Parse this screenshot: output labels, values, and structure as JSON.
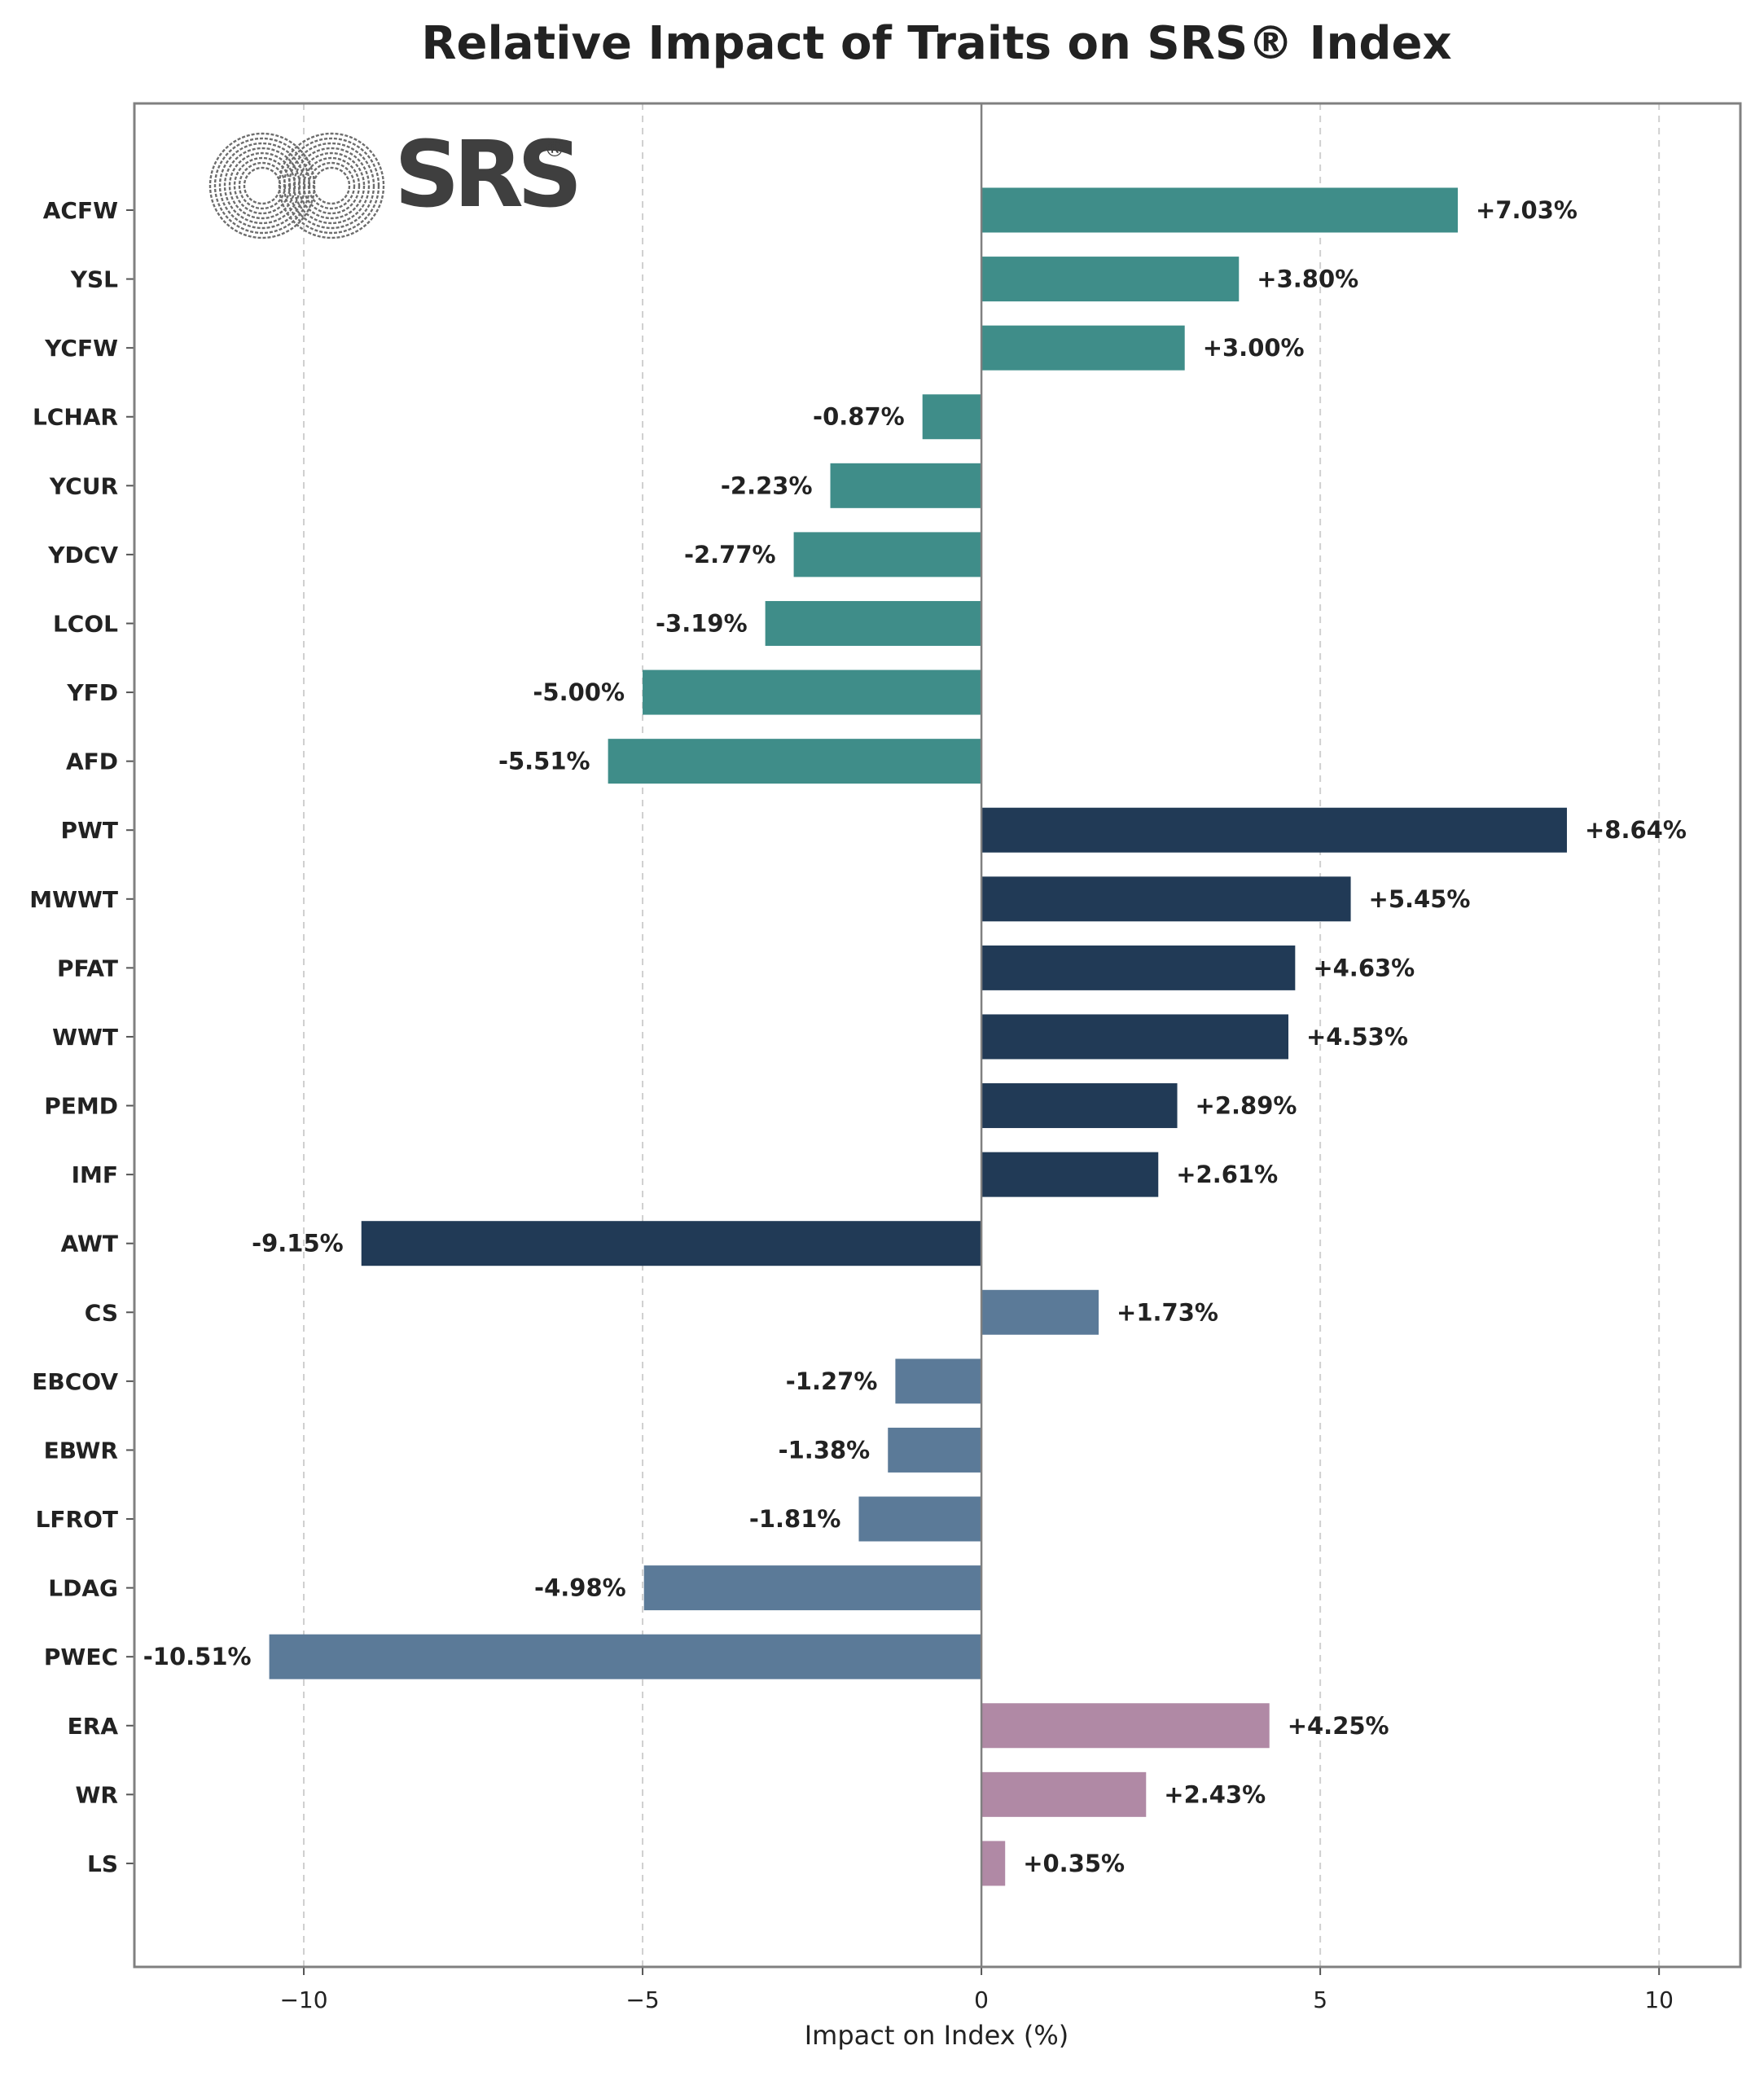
{
  "chart_data": {
    "type": "bar",
    "orientation": "horizontal",
    "title": "Relative Impact of Traits on SRS® Index",
    "xlabel": "Impact on Index (%)",
    "ylabel": "",
    "xlim": [
      -12.5,
      11.2
    ],
    "xticks": [
      -10,
      -5,
      0,
      5,
      10
    ],
    "xtick_labels": [
      "−10",
      "−5",
      "0",
      "5",
      "10"
    ],
    "grid": "x, dashed",
    "logo": {
      "text": "SRS",
      "mark": "®"
    },
    "categories": [
      "ACFW",
      "YSL",
      "YCFW",
      "LCHAR",
      "YCUR",
      "YDCV",
      "LCOL",
      "YFD",
      "AFD",
      "PWT",
      "MWWT",
      "PFAT",
      "WWT",
      "PEMD",
      "IMF",
      "AWT",
      "CS",
      "EBCOV",
      "EBWR",
      "LFROT",
      "LDAG",
      "PWEC",
      "ERA",
      "WR",
      "LS"
    ],
    "values": [
      7.03,
      3.8,
      3.0,
      -0.87,
      -2.23,
      -2.77,
      -3.19,
      -5.0,
      -5.51,
      8.64,
      5.45,
      4.63,
      4.53,
      2.89,
      2.61,
      -9.15,
      1.73,
      -1.27,
      -1.38,
      -1.81,
      -4.98,
      -10.51,
      4.25,
      2.43,
      0.35
    ],
    "value_labels": [
      "+7.03%",
      "+3.80%",
      "+3.00%",
      "-0.87%",
      "-2.23%",
      "-2.77%",
      "-3.19%",
      "-5.00%",
      "-5.51%",
      "+8.64%",
      "+5.45%",
      "+4.63%",
      "+4.53%",
      "+2.89%",
      "+2.61%",
      "-9.15%",
      "+1.73%",
      "-1.27%",
      "-1.38%",
      "-1.81%",
      "-4.98%",
      "-10.51%",
      "+4.25%",
      "+2.43%",
      "+0.35%"
    ],
    "groups": [
      {
        "color": "#3f8d89",
        "count": 9
      },
      {
        "color": "#213a56",
        "count": 7
      },
      {
        "color": "#5b7a98",
        "count": 6
      },
      {
        "color": "#b089a5",
        "count": 3
      }
    ]
  }
}
